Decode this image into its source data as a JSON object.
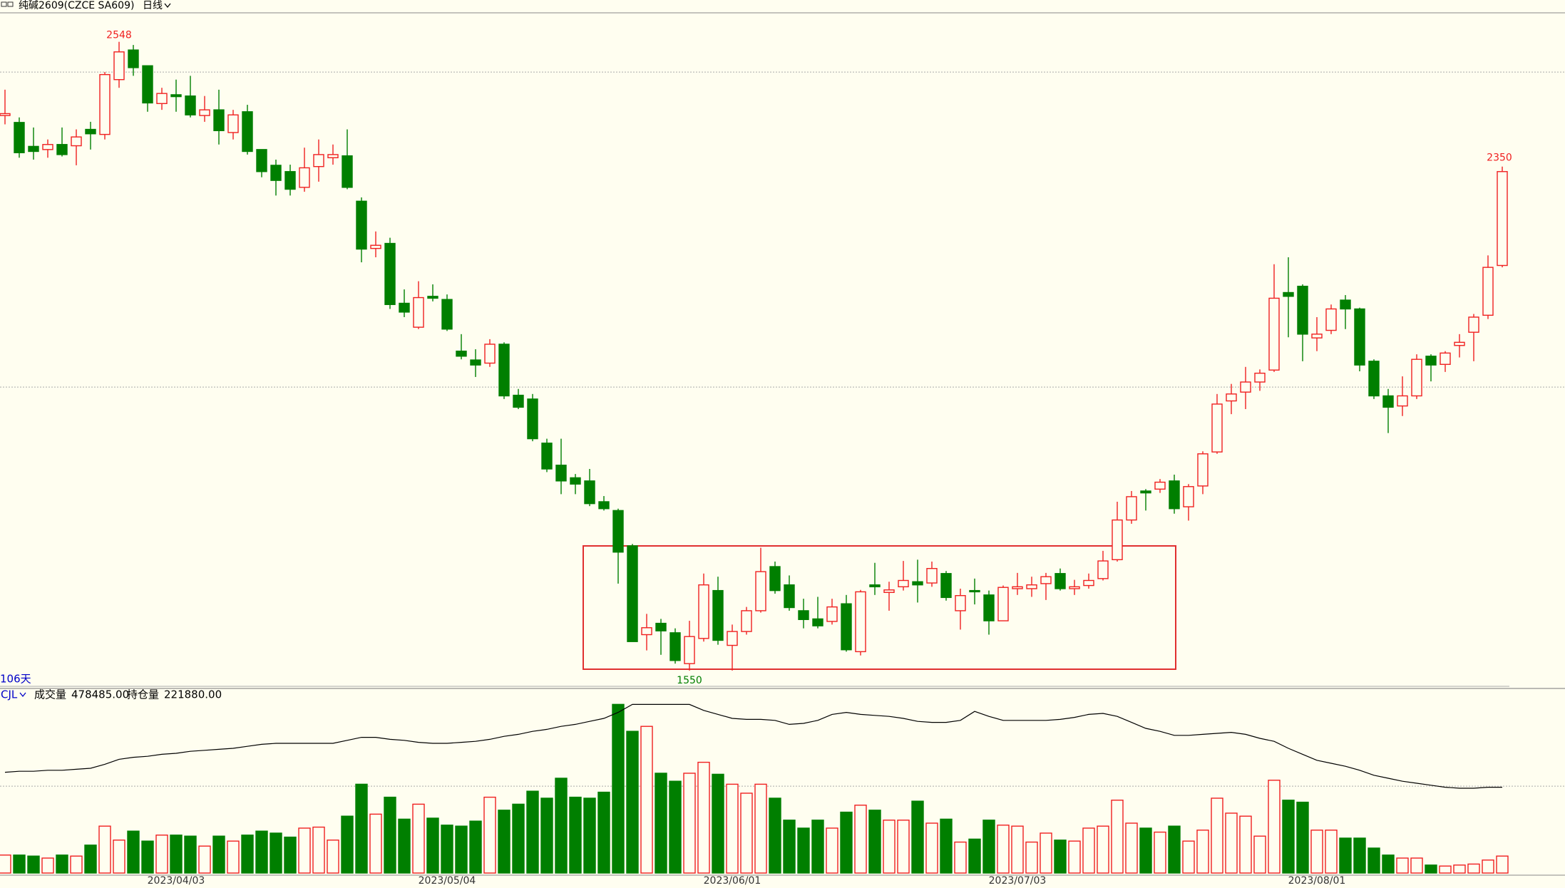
{
  "chart_data": {
    "type": "candlestick",
    "title": "纯碱2609(CZCE SA609)",
    "period": "日线",
    "span_label": "106天",
    "indicator": "CJL",
    "volume_label": "成交量",
    "volume_readout": "478485.00",
    "oi_label": "持仓量",
    "oi_readout": "221880.00",
    "up_color": "#f02020",
    "down_color": "#007f00",
    "oi_color": "#000000",
    "ylim": [
      1525,
      2594
    ],
    "gridlines": [
      2000,
      2500
    ],
    "volume_ylim": [
      0,
      4925000
    ],
    "volume_gridlines": [
      2450000
    ],
    "oi_ylim": [
      0,
      451500
    ],
    "x": [
      null,
      null,
      null,
      null,
      null,
      null,
      null,
      null,
      null,
      null,
      null,
      null,
      "2023/04/03",
      null,
      null,
      null,
      null,
      null,
      null,
      null,
      null,
      null,
      null,
      null,
      null,
      null,
      null,
      null,
      null,
      null,
      null,
      "2023/05/04",
      null,
      null,
      null,
      null,
      null,
      null,
      null,
      null,
      null,
      null,
      null,
      null,
      null,
      null,
      null,
      null,
      null,
      null,
      null,
      "2023/06/01",
      null,
      null,
      null,
      null,
      null,
      null,
      null,
      null,
      null,
      null,
      null,
      null,
      null,
      null,
      null,
      null,
      null,
      null,
      null,
      "2023/07/03",
      null,
      null,
      null,
      null,
      null,
      null,
      null,
      null,
      null,
      null,
      null,
      null,
      null,
      null,
      null,
      null,
      null,
      null,
      null,
      null,
      "2023/08/01",
      null,
      null,
      null,
      null,
      null,
      null,
      null,
      null,
      null,
      null,
      null,
      null,
      null
    ],
    "open": [
      2431,
      2420,
      2382,
      2377,
      2385,
      2383,
      2409,
      2401,
      2488,
      2535,
      2510,
      2450,
      2464,
      2462,
      2431,
      2440,
      2404,
      2437,
      2377,
      2352,
      2342,
      2317,
      2350,
      2364,
      2367,
      2295,
      2220,
      2228,
      2133,
      2095,
      2144,
      2139,
      2057,
      2043,
      2038,
      2068,
      1987,
      1981,
      1911,
      1876,
      1856,
      1851,
      1818,
      1804,
      1748,
      1607,
      1625,
      1610,
      1561,
      1601,
      1677,
      1590,
      1612,
      1645,
      1715,
      1686,
      1645,
      1632,
      1628,
      1656,
      1580,
      1686,
      1674,
      1683,
      1691,
      1689,
      1704,
      1645,
      1677,
      1670,
      1629,
      1680,
      1680,
      1688,
      1704,
      1680,
      1685,
      1696,
      1726,
      1789,
      1835,
      1838,
      1851,
      1810,
      1843,
      1897,
      1978,
      1992,
      2008,
      2027,
      2150,
      2160,
      2078,
      2090,
      2138,
      2124,
      2041,
      1986,
      1970,
      1986,
      2049,
      2036,
      2066,
      2087,
      2114,
      2193
    ],
    "high": [
      2472,
      2428,
      2412,
      2393,
      2412,
      2409,
      2421,
      2500,
      2548,
      2543,
      2510,
      2475,
      2488,
      2494,
      2462,
      2472,
      2440,
      2448,
      2377,
      2361,
      2353,
      2380,
      2393,
      2385,
      2409,
      2301,
      2247,
      2237,
      2155,
      2168,
      2163,
      2147,
      2084,
      2060,
      2076,
      2071,
      1997,
      1989,
      1918,
      1918,
      1862,
      1870,
      1827,
      1807,
      1751,
      1640,
      1632,
      1617,
      1629,
      1704,
      1699,
      1623,
      1651,
      1745,
      1723,
      1701,
      1664,
      1667,
      1664,
      1670,
      1678,
      1721,
      1691,
      1724,
      1726,
      1723,
      1708,
      1680,
      1696,
      1677,
      1685,
      1705,
      1699,
      1705,
      1712,
      1694,
      1704,
      1740,
      1818,
      1835,
      1838,
      1854,
      1861,
      1846,
      1898,
      1989,
      2005,
      2032,
      2028,
      2195,
      2206,
      2163,
      2111,
      2131,
      2146,
      2126,
      2044,
      1997,
      2017,
      2052,
      2052,
      2057,
      2084,
      2116,
      2209,
      2350
    ],
    "low": [
      2417,
      2364,
      2361,
      2364,
      2366,
      2352,
      2377,
      2393,
      2475,
      2494,
      2437,
      2440,
      2437,
      2428,
      2421,
      2385,
      2393,
      2369,
      2333,
      2304,
      2304,
      2310,
      2326,
      2353,
      2314,
      2198,
      2206,
      2124,
      2111,
      2092,
      2136,
      2089,
      2044,
      2016,
      2032,
      1981,
      1965,
      1914,
      1865,
      1830,
      1830,
      1811,
      1804,
      1688,
      1596,
      1582,
      1575,
      1561,
      1550,
      1596,
      1591,
      1550,
      1607,
      1642,
      1672,
      1645,
      1617,
      1617,
      1623,
      1580,
      1574,
      1670,
      1645,
      1677,
      1658,
      1683,
      1661,
      1615,
      1655,
      1607,
      1629,
      1670,
      1667,
      1662,
      1677,
      1670,
      1680,
      1693,
      1723,
      1783,
      1804,
      1832,
      1799,
      1788,
      1830,
      1894,
      1957,
      1965,
      1994,
      2024,
      2079,
      2041,
      2057,
      2084,
      2092,
      2025,
      1981,
      1927,
      1954,
      1981,
      2009,
      2024,
      2047,
      2041,
      2108,
      2190
    ],
    "close": [
      2434,
      2372,
      2374,
      2385,
      2369,
      2397,
      2402,
      2496,
      2532,
      2507,
      2451,
      2466,
      2461,
      2432,
      2440,
      2407,
      2432,
      2374,
      2342,
      2328,
      2314,
      2348,
      2369,
      2369,
      2317,
      2219,
      2225,
      2131,
      2119,
      2142,
      2141,
      2092,
      2049,
      2035,
      2068,
      1986,
      1968,
      1918,
      1870,
      1851,
      1846,
      1815,
      1807,
      1738,
      1596,
      1618,
      1613,
      1566,
      1604,
      1686,
      1598,
      1612,
      1645,
      1707,
      1677,
      1650,
      1631,
      1621,
      1651,
      1583,
      1675,
      1683,
      1678,
      1693,
      1686,
      1712,
      1666,
      1669,
      1675,
      1629,
      1682,
      1683,
      1686,
      1699,
      1680,
      1683,
      1693,
      1724,
      1789,
      1826,
      1832,
      1849,
      1807,
      1842,
      1894,
      1973,
      1989,
      2008,
      2022,
      2141,
      2144,
      2084,
      2084,
      2124,
      2124,
      2035,
      1986,
      1968,
      1986,
      2044,
      2035,
      2054,
      2071,
      2111,
      2190,
      2342
    ],
    "volume": [
      507000,
      507000,
      478000,
      422000,
      507000,
      478000,
      788000,
      1323000,
      929000,
      1182000,
      901000,
      1070000,
      1070000,
      1041000,
      760000,
      1041000,
      901000,
      1070000,
      1182000,
      1126000,
      1013000,
      1267000,
      1295000,
      929000,
      1604000,
      2505000,
      1661000,
      2139000,
      1520000,
      1942000,
      1548000,
      1351000,
      1323000,
      1464000,
      2139000,
      1773000,
      1942000,
      2308000,
      2111000,
      2674000,
      2139000,
      2111000,
      2280000,
      4757000,
      3997000,
      4137000,
      2815000,
      2589000,
      2815000,
      3124000,
      2786000,
      2505000,
      2252000,
      2505000,
      2111000,
      1492000,
      1267000,
      1492000,
      1267000,
      1717000,
      1914000,
      1773000,
      1492000,
      1492000,
      2027000,
      1407000,
      1520000,
      873000,
      957000,
      1492000,
      1351000,
      1323000,
      873000,
      1126000,
      929000,
      901000,
      1267000,
      1323000,
      2055000,
      1407000,
      1267000,
      1154000,
      1323000,
      901000,
      1210000,
      2111000,
      1689000,
      1604000,
      1041000,
      2618000,
      2055000,
      1998000,
      1210000,
      1210000,
      985000,
      985000,
      704000,
      507000,
      422000,
      422000,
      225000,
      197000,
      225000,
      253000,
      366000,
      478485
    ],
    "open_interest": [
      260580,
      263160,
      263160,
      265740,
      265740,
      268320,
      270900,
      281220,
      294120,
      299280,
      301860,
      307020,
      309600,
      314760,
      317340,
      319920,
      322500,
      327660,
      332820,
      335400,
      335400,
      335400,
      335400,
      335400,
      343140,
      350880,
      350880,
      345720,
      343140,
      337980,
      335400,
      335400,
      337980,
      340560,
      345720,
      353460,
      358620,
      366360,
      371520,
      379260,
      384420,
      392160,
      399900,
      415380,
      436020,
      436020,
      436020,
      436020,
      436020,
      420540,
      410220,
      399900,
      397320,
      397320,
      394740,
      384420,
      387000,
      394740,
      410220,
      415380,
      410220,
      407640,
      405060,
      399900,
      392160,
      389580,
      389580,
      394740,
      417960,
      405060,
      394740,
      394740,
      394740,
      394740,
      397320,
      402480,
      410220,
      412800,
      405060,
      389580,
      374100,
      366360,
      356040,
      356040,
      358620,
      361200,
      363780,
      358620,
      348300,
      340560,
      322500,
      307020,
      291540,
      283800,
      276060,
      265740,
      252840,
      245100,
      237360,
      232200,
      227040,
      221880,
      219300,
      219300,
      221880,
      221880
    ]
  }
}
